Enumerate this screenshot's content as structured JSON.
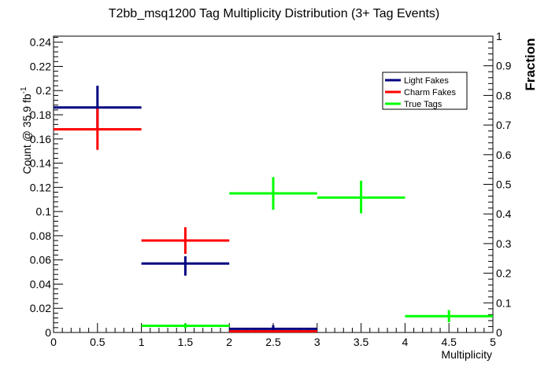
{
  "chart_data": {
    "type": "scatter",
    "title": "T2bb_msq1200 Tag Multiplicity Distribution (3+ Tag Events)",
    "xlabel": "Multiplicity",
    "ylabel_left": "Count @ 35.9 fb",
    "ylabel_left_sup": "-1",
    "ylabel_right": "Fraction",
    "xlim": [
      0,
      5
    ],
    "ylim_left": [
      0,
      0.245
    ],
    "ylim_right": [
      0,
      1
    ],
    "x_ticks": [
      "0",
      "0.5",
      "1",
      "1.5",
      "2",
      "2.5",
      "3",
      "3.5",
      "4",
      "4.5",
      "5"
    ],
    "y_ticks_left": [
      "0",
      "0.02",
      "0.04",
      "0.06",
      "0.08",
      "0.1",
      "0.12",
      "0.14",
      "0.16",
      "0.18",
      "0.2",
      "0.22",
      "0.24"
    ],
    "y_ticks_right": [
      "0",
      "0.1",
      "0.2",
      "0.3",
      "0.4",
      "0.5",
      "0.6",
      "0.7",
      "0.8",
      "0.9",
      "1"
    ],
    "legend_position": "top-right",
    "series": [
      {
        "name": "Light Fakes",
        "color": "#000080",
        "points": [
          {
            "x": 0.5,
            "xlo": 0,
            "xhi": 1,
            "y": 0.186,
            "ylo": 0.168,
            "yhi": 0.204
          },
          {
            "x": 1.5,
            "xlo": 1,
            "xhi": 2,
            "y": 0.057,
            "ylo": 0.047,
            "yhi": 0.063
          },
          {
            "x": 2.5,
            "xlo": 2,
            "xhi": 3,
            "y": 0.003,
            "ylo": 0.0,
            "yhi": 0.006
          }
        ]
      },
      {
        "name": "Charm Fakes",
        "color": "#ff0000",
        "points": [
          {
            "x": 0.5,
            "xlo": 0,
            "xhi": 1,
            "y": 0.168,
            "ylo": 0.151,
            "yhi": 0.185
          },
          {
            "x": 1.5,
            "xlo": 1,
            "xhi": 2,
            "y": 0.076,
            "ylo": 0.065,
            "yhi": 0.087
          },
          {
            "x": 2.5,
            "xlo": 2,
            "xhi": 3,
            "y": 0.001,
            "ylo": 0.0,
            "yhi": 0.002
          }
        ]
      },
      {
        "name": "True Tags",
        "color": "#00ff00",
        "points": [
          {
            "x": 1.5,
            "xlo": 1,
            "xhi": 2,
            "y": 0.0055,
            "ylo": 0.0035,
            "yhi": 0.0075
          },
          {
            "x": 2.5,
            "xlo": 2,
            "xhi": 3,
            "y": 0.115,
            "ylo": 0.1015,
            "yhi": 0.1285
          },
          {
            "x": 3.5,
            "xlo": 3,
            "xhi": 4,
            "y": 0.1115,
            "ylo": 0.0985,
            "yhi": 0.1255
          },
          {
            "x": 4.5,
            "xlo": 4,
            "xhi": 5,
            "y": 0.0135,
            "ylo": 0.0085,
            "yhi": 0.0185
          }
        ]
      }
    ]
  }
}
